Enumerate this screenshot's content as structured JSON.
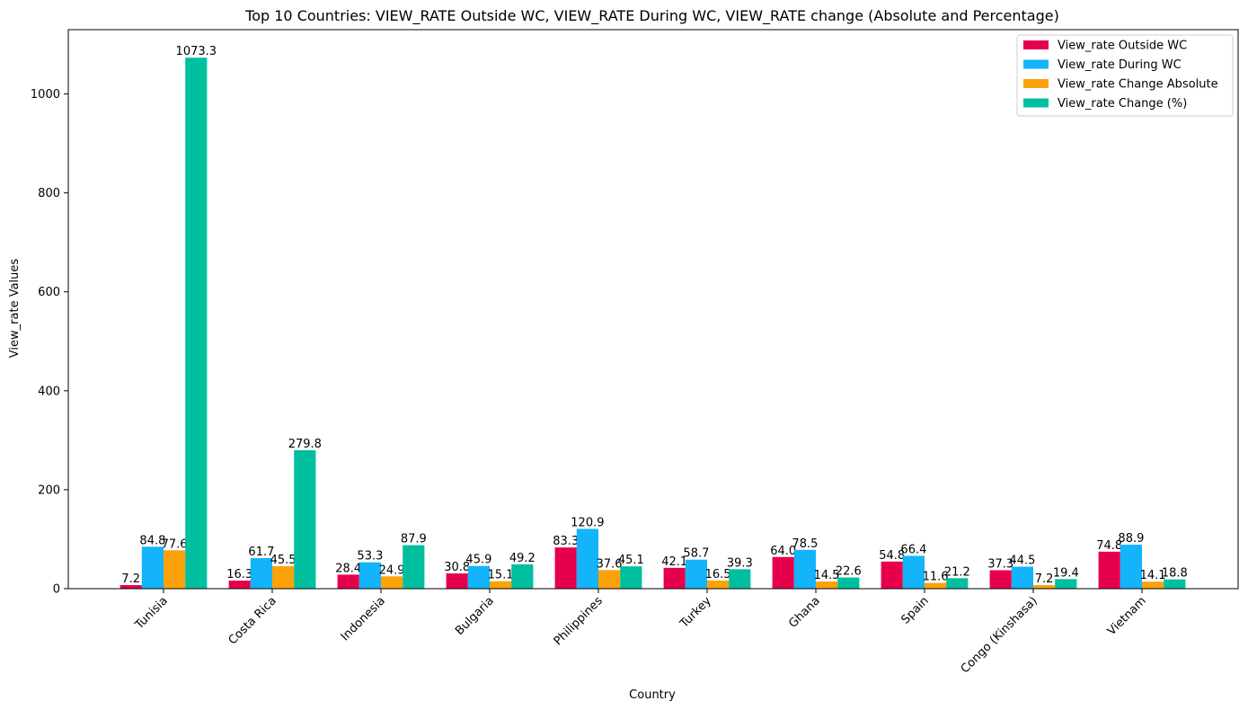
{
  "chart_data": {
    "type": "bar",
    "title": "Top 10 Countries: VIEW_RATE Outside WC, VIEW_RATE During WC, VIEW_RATE change (Absolute and Percentage)",
    "xlabel": "Country",
    "ylabel": "View_rate Values",
    "ylim": [
      0,
      1130
    ],
    "yticks": [
      0,
      200,
      400,
      600,
      800,
      1000
    ],
    "grid": false,
    "legend_position": "top-right",
    "categories": [
      "Tunisia",
      "Costa Rica",
      "Indonesia",
      "Bulgaria",
      "Philippines",
      "Turkey",
      "Ghana",
      "Spain",
      "Congo (Kinshasa)",
      "Vietnam"
    ],
    "series": [
      {
        "name": "View_rate Outside WC",
        "color": "#e6004c",
        "values": [
          7.2,
          16.3,
          28.4,
          30.8,
          83.3,
          42.1,
          64.0,
          54.8,
          37.3,
          74.8
        ]
      },
      {
        "name": "View_rate During WC",
        "color": "#13b4fa",
        "values": [
          84.8,
          61.7,
          53.3,
          45.9,
          120.9,
          58.7,
          78.5,
          66.4,
          44.5,
          88.9
        ]
      },
      {
        "name": "View_rate Change Absolute",
        "color": "#fba20b",
        "values": [
          77.6,
          45.5,
          24.9,
          15.1,
          37.6,
          16.5,
          14.5,
          11.6,
          7.2,
          14.1
        ]
      },
      {
        "name": "View_rate Change (%)",
        "color": "#00bf9f",
        "values": [
          1073.3,
          279.8,
          87.9,
          49.2,
          45.1,
          39.3,
          22.6,
          21.2,
          19.4,
          18.8
        ]
      }
    ]
  }
}
